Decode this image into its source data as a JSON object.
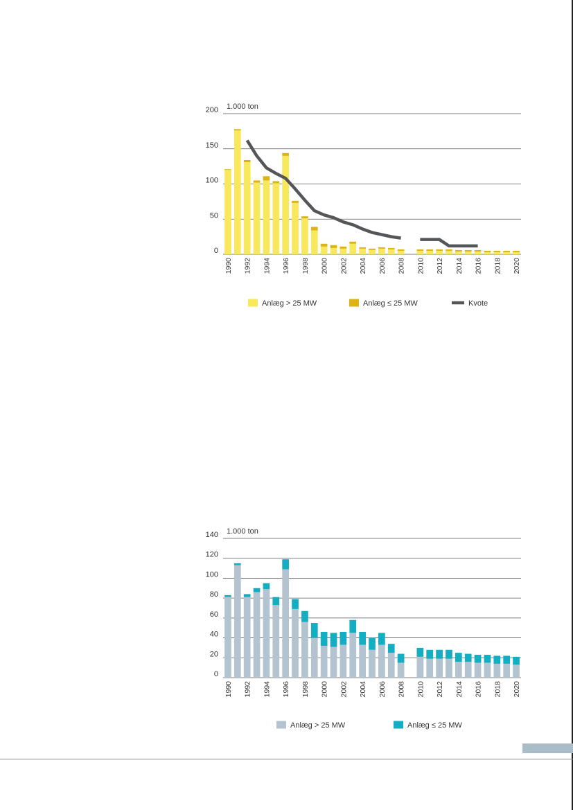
{
  "colors": {
    "page_edge": "#222222",
    "gridline": "#555555",
    "chart1_large": "#f7e85c",
    "chart1_small": "#dcb418",
    "chart1_quota": "#55565a",
    "chart2_large": "#b3c3cf",
    "chart2_small": "#14aec2",
    "page_tab": "#a9bcc8"
  },
  "chart_data": [
    {
      "type": "bar",
      "stacked": true,
      "unit_label": "1.000 ton",
      "ylim": [
        0,
        200
      ],
      "yticks": [
        "0",
        "50",
        "100",
        "150",
        "200"
      ],
      "grid": true,
      "legend_position": "bottom",
      "legend": [
        "Anlæg > 25 MW",
        "Anlæg ≤ 25 MW",
        "Kvote"
      ],
      "categories": [
        "1990",
        "1991",
        "1992",
        "1993",
        "1994",
        "1995",
        "1996",
        "1997",
        "1998",
        "1999",
        "2000",
        "2001",
        "2002",
        "2003",
        "2004",
        "2005",
        "2006",
        "2007",
        "2008",
        "2009",
        "2010",
        "2011",
        "2012",
        "2013",
        "2014",
        "2015",
        "2016",
        "2017",
        "2018",
        "2019",
        "2020"
      ],
      "xtick_labels": [
        "1990",
        "1992",
        "1994",
        "1996",
        "1998",
        "2000",
        "2002",
        "2004",
        "2006",
        "2008",
        "2010",
        "2012",
        "2014",
        "2016",
        "2018",
        "2020"
      ],
      "series": [
        {
          "name": "Anlæg > 25 MW",
          "values": [
            120,
            176,
            131,
            102,
            105,
            101,
            140,
            73,
            51,
            34,
            11,
            9,
            8,
            15,
            8,
            6,
            8,
            7,
            5,
            null,
            5,
            5,
            5,
            5,
            4,
            4,
            4,
            3,
            3,
            3,
            3
          ]
        },
        {
          "name": "Anlæg ≤ 25 MW",
          "values": [
            1,
            2,
            3,
            3,
            6,
            3,
            4,
            3,
            3,
            5,
            4,
            4,
            3,
            3,
            2,
            2,
            2,
            2,
            2,
            null,
            2,
            2,
            2,
            2,
            2,
            2,
            2,
            2,
            2,
            2,
            2
          ]
        }
      ],
      "line": {
        "name": "Kvote",
        "values": [
          null,
          null,
          162,
          140,
          123,
          115,
          108,
          93,
          77,
          62,
          56,
          52,
          46,
          42,
          36,
          31,
          28,
          25,
          23,
          null,
          21,
          21,
          21,
          12,
          12,
          12,
          12,
          null,
          null,
          null,
          null
        ]
      }
    },
    {
      "type": "bar",
      "stacked": true,
      "unit_label": "1.000 ton",
      "ylim": [
        0,
        140
      ],
      "yticks": [
        "0",
        "20",
        "40",
        "60",
        "80",
        "100",
        "120",
        "140"
      ],
      "grid": true,
      "legend_position": "bottom",
      "legend": [
        "Anlæg > 25 MW",
        "Anlæg ≤ 25 MW"
      ],
      "categories": [
        "1990",
        "1991",
        "1992",
        "1993",
        "1994",
        "1995",
        "1996",
        "1997",
        "1998",
        "1999",
        "2000",
        "2001",
        "2002",
        "2003",
        "2004",
        "2005",
        "2006",
        "2007",
        "2008",
        "2009",
        "2010",
        "2011",
        "2012",
        "2013",
        "2014",
        "2015",
        "2016",
        "2017",
        "2018",
        "2019",
        "2020"
      ],
      "xtick_labels": [
        "1990",
        "1992",
        "1994",
        "1996",
        "1998",
        "2000",
        "2002",
        "2004",
        "2006",
        "2008",
        "2010",
        "2012",
        "2014",
        "2016",
        "2018",
        "2020"
      ],
      "series": [
        {
          "name": "Anlæg > 25 MW",
          "values": [
            81,
            113,
            81,
            86,
            89,
            73,
            109,
            69,
            56,
            40,
            32,
            31,
            33,
            45,
            33,
            28,
            33,
            25,
            15,
            null,
            21,
            19,
            19,
            19,
            16,
            16,
            15,
            15,
            14,
            14,
            13
          ]
        },
        {
          "name": "Anlæg ≤ 25 MW",
          "values": [
            2,
            2,
            3,
            4,
            6,
            8,
            10,
            10,
            11,
            15,
            14,
            14,
            13,
            13,
            13,
            12,
            12,
            9,
            9,
            null,
            9,
            9,
            9,
            9,
            9,
            8,
            8,
            8,
            8,
            8,
            8
          ]
        }
      ]
    }
  ]
}
